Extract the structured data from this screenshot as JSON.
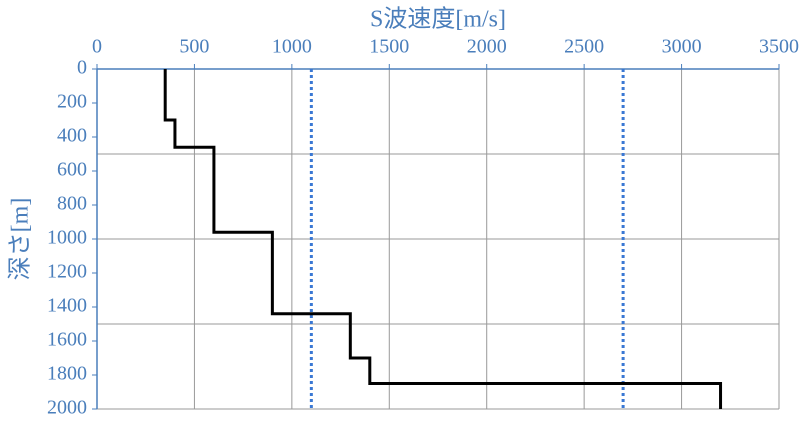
{
  "chart_data": {
    "type": "line",
    "title": "S波速度[m/s]",
    "y_label": "深さ[m]",
    "x": [
      350,
      350,
      400,
      400,
      600,
      600,
      900,
      900,
      1300,
      1300,
      1400,
      1400,
      3200,
      3200
    ],
    "series": [
      {
        "color": "#000000",
        "values": [
          0,
          300,
          300,
          460,
          460,
          960,
          960,
          1440,
          1440,
          1700,
          1700,
          1850,
          1850,
          2000
        ]
      }
    ],
    "reference_lines": [
      {
        "value": 1100,
        "color": "#3a78d4"
      },
      {
        "value": 2700,
        "color": "#3a78d4"
      }
    ],
    "xlim": [
      0,
      3500
    ],
    "xticks": [
      0,
      500,
      1000,
      1500,
      2000,
      2500,
      3000,
      3500
    ],
    "ylim": [
      0,
      2000
    ],
    "yticks": [
      0,
      200,
      400,
      600,
      800,
      1000,
      1200,
      1400,
      1600,
      1800,
      2000
    ],
    "ygrid": [
      500,
      1000,
      1500,
      2000
    ],
    "y_inverted": true,
    "x_axis_position": "top",
    "grid": true
  }
}
